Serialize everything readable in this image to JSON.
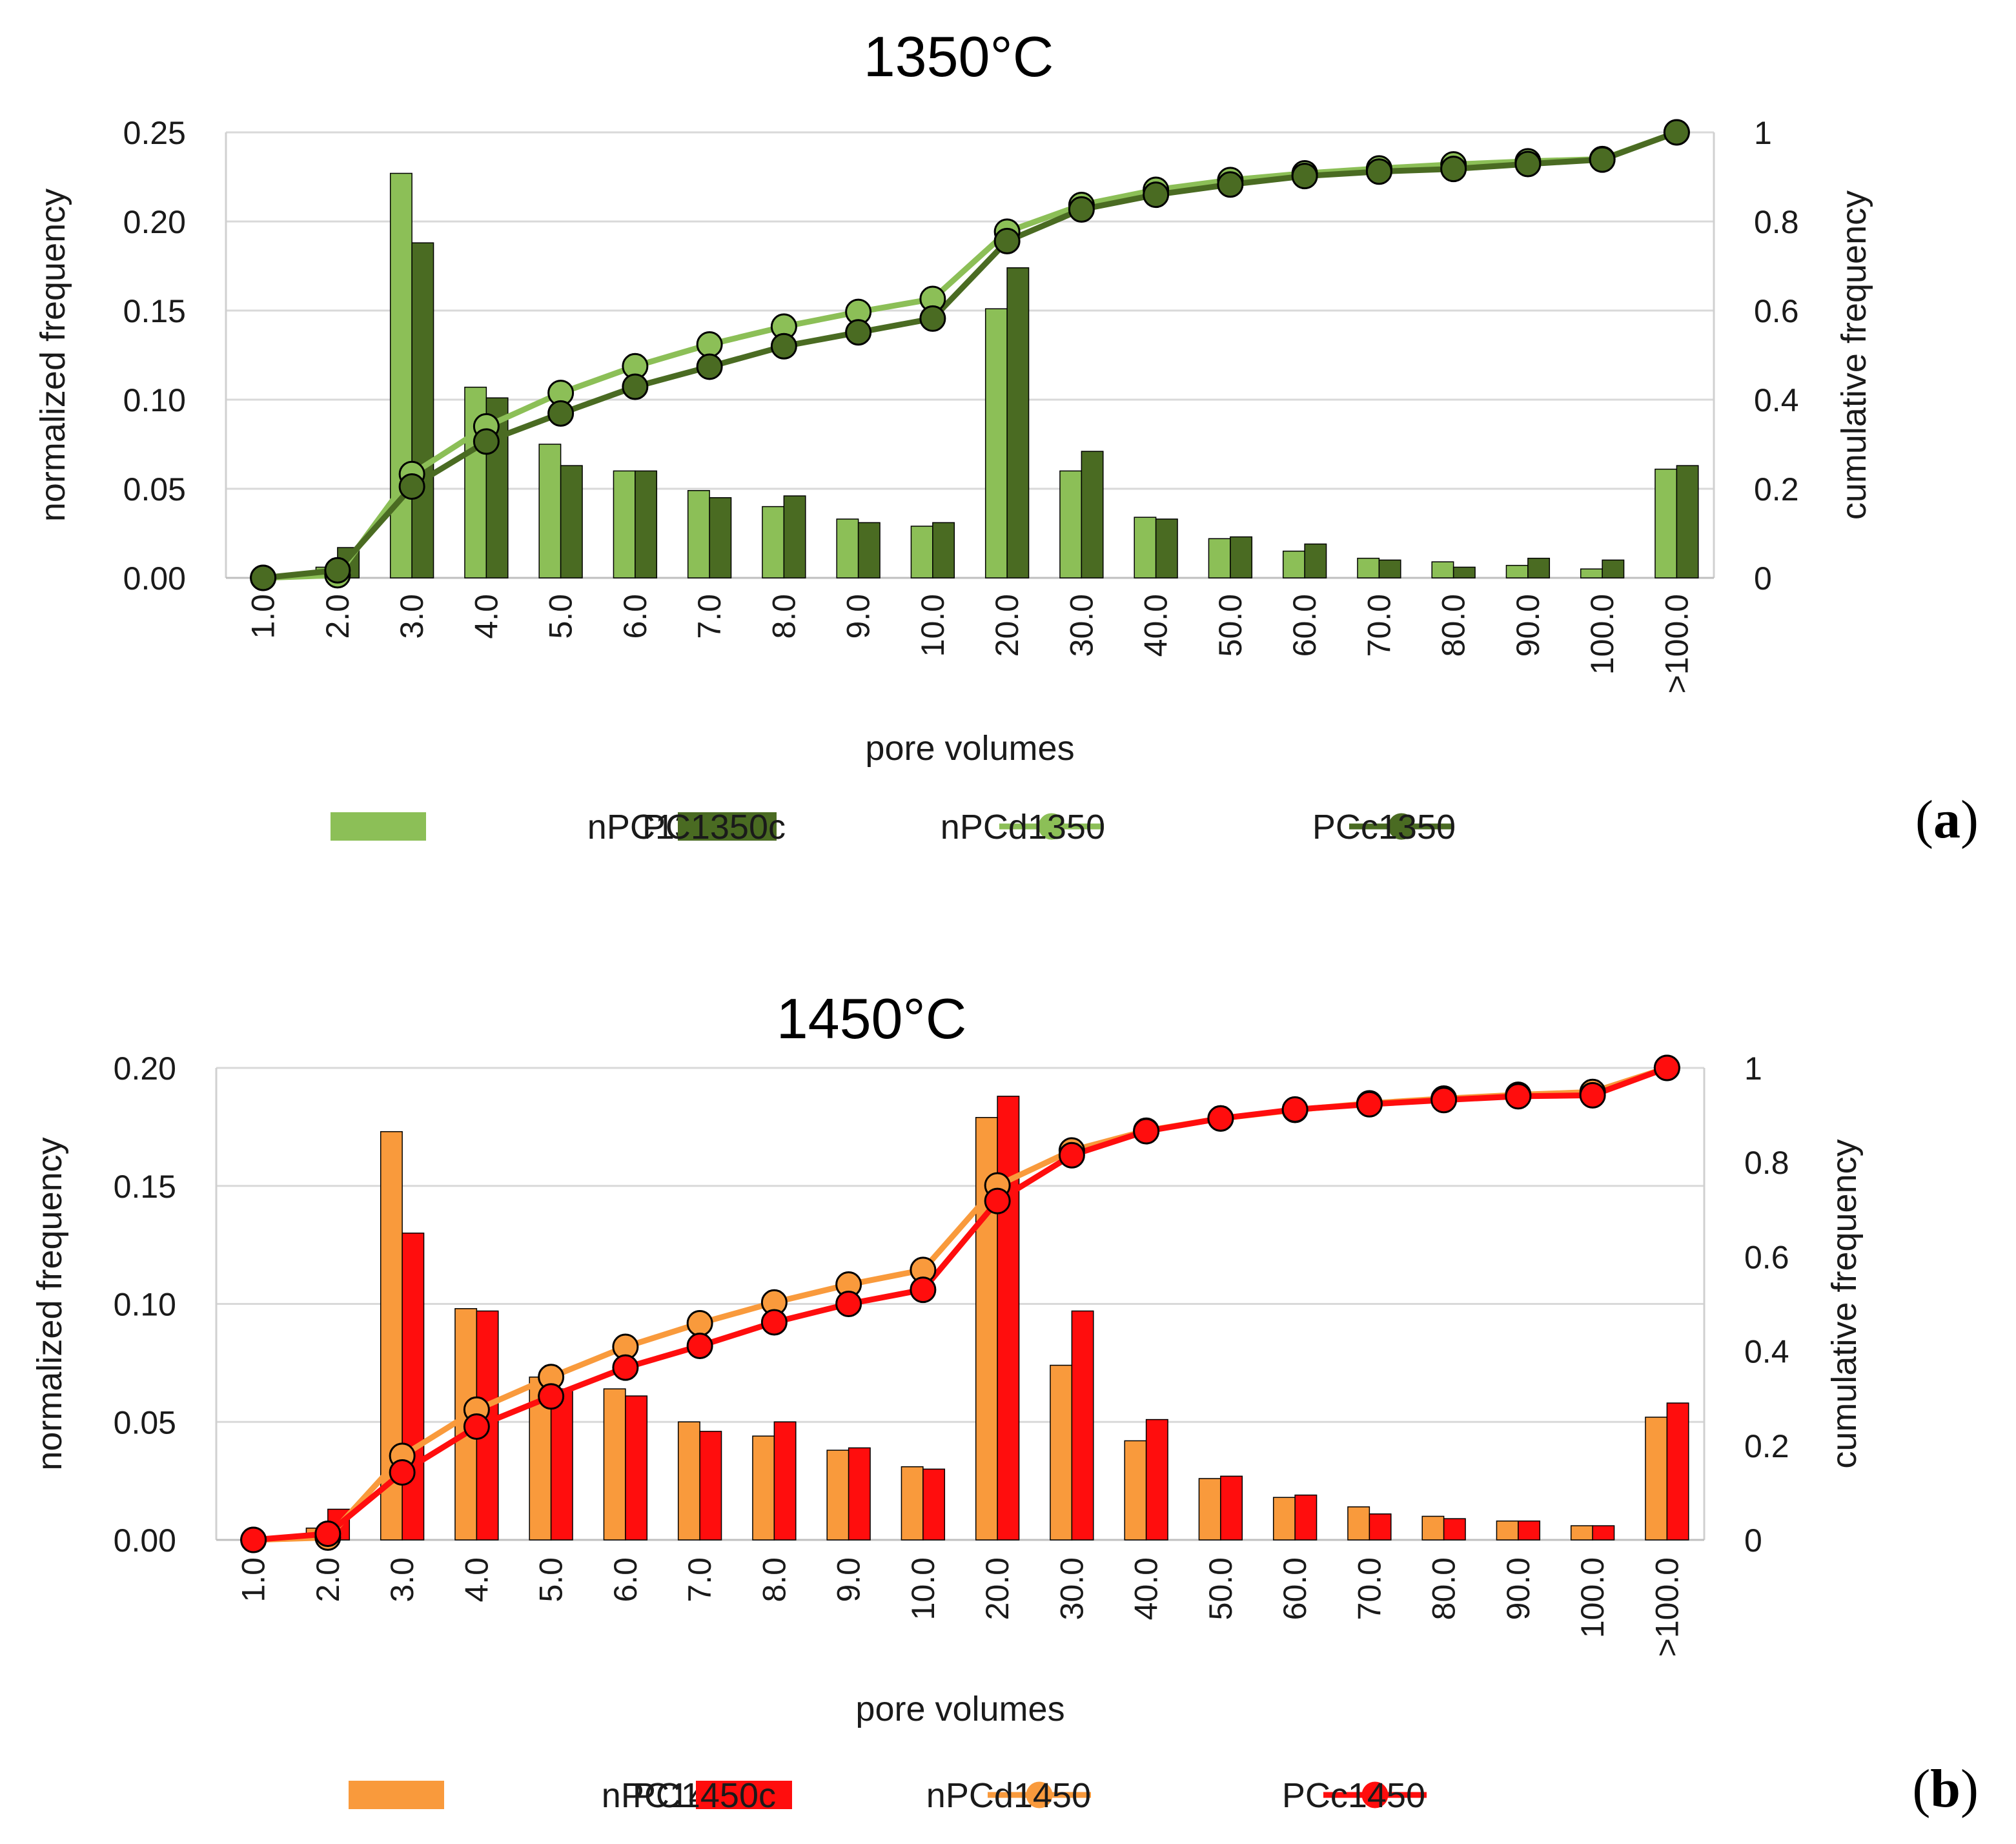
{
  "chart_data": [
    {
      "type": "bar",
      "panel": "a",
      "title": "1350°C",
      "xlabel": "pore volumes",
      "ylabel": "normalized frequency",
      "y2label": "cumulative frequency",
      "categories": [
        "1.0",
        "2.0",
        "3.0",
        "4.0",
        "5.0",
        "6.0",
        "7.0",
        "8.0",
        "9.0",
        "10.0",
        "20.0",
        "30.0",
        "40.0",
        "50.0",
        "60.0",
        "70.0",
        "80.0",
        "90.0",
        "100.0",
        ">100.0"
      ],
      "ylim": [
        0,
        0.25
      ],
      "yticks": [
        "0.00",
        "0.05",
        "0.10",
        "0.15",
        "0.20",
        "0.25"
      ],
      "y2lim": [
        0,
        1
      ],
      "y2ticks": [
        "0",
        "0.2",
        "0.4",
        "0.6",
        "0.8",
        "1"
      ],
      "grid": true,
      "legend_position": "bottom",
      "bar_series": [
        {
          "name": "nPC1350d",
          "color": "#8cbf57",
          "values": [
            0.0,
            0.006,
            0.227,
            0.107,
            0.075,
            0.06,
            0.049,
            0.04,
            0.033,
            0.029,
            0.151,
            0.06,
            0.034,
            0.022,
            0.015,
            0.011,
            0.009,
            0.007,
            0.005,
            0.061
          ]
        },
        {
          "name": "PC1350c",
          "color": "#4a6b22",
          "values": [
            0.0,
            0.017,
            0.188,
            0.101,
            0.063,
            0.06,
            0.045,
            0.046,
            0.031,
            0.031,
            0.174,
            0.071,
            0.033,
            0.023,
            0.019,
            0.01,
            0.006,
            0.011,
            0.01,
            0.063
          ]
        }
      ],
      "line_series": [
        {
          "name": "nPCd1350",
          "color": "#8cbf57",
          "values": [
            0.0,
            0.006,
            0.233,
            0.34,
            0.415,
            0.475,
            0.524,
            0.564,
            0.597,
            0.626,
            0.777,
            0.837,
            0.871,
            0.893,
            0.908,
            0.919,
            0.928,
            0.935,
            0.94,
            1.0
          ]
        },
        {
          "name": "PCc1350",
          "color": "#4a6b22",
          "values": [
            0.0,
            0.017,
            0.205,
            0.306,
            0.369,
            0.429,
            0.474,
            0.52,
            0.551,
            0.582,
            0.756,
            0.827,
            0.86,
            0.883,
            0.902,
            0.912,
            0.918,
            0.929,
            0.939,
            1.0
          ]
        }
      ]
    },
    {
      "type": "bar",
      "panel": "b",
      "title": "1450°C",
      "xlabel": "pore volumes",
      "ylabel": "normalized frequency",
      "y2label": "cumulative frequency",
      "categories": [
        "1.0",
        "2.0",
        "3.0",
        "4.0",
        "5.0",
        "6.0",
        "7.0",
        "8.0",
        "9.0",
        "10.0",
        "20.0",
        "30.0",
        "40.0",
        "50.0",
        "60.0",
        "70.0",
        "80.0",
        "90.0",
        "100.0",
        ">100.0"
      ],
      "ylim": [
        0,
        0.2
      ],
      "yticks": [
        "0.00",
        "0.05",
        "0.10",
        "0.15",
        "0.20"
      ],
      "y2lim": [
        0,
        1
      ],
      "y2ticks": [
        "0",
        "0.2",
        "0.4",
        "0.6",
        "0.8",
        "1"
      ],
      "grid": true,
      "legend_position": "bottom",
      "bar_series": [
        {
          "name": "nPC1450d",
          "color": "#f99a3c",
          "values": [
            0.0,
            0.005,
            0.173,
            0.098,
            0.069,
            0.064,
            0.05,
            0.044,
            0.038,
            0.031,
            0.179,
            0.074,
            0.042,
            0.026,
            0.018,
            0.014,
            0.01,
            0.008,
            0.006,
            0.052
          ]
        },
        {
          "name": "PC1450c",
          "color": "#ff0d0d",
          "values": [
            0.0,
            0.013,
            0.13,
            0.097,
            0.064,
            0.061,
            0.046,
            0.05,
            0.039,
            0.03,
            0.188,
            0.097,
            0.051,
            0.027,
            0.019,
            0.011,
            0.009,
            0.008,
            0.006,
            0.058
          ]
        }
      ],
      "line_series": [
        {
          "name": "nPCd1450",
          "color": "#f99a3c",
          "values": [
            0.0,
            0.005,
            0.178,
            0.276,
            0.345,
            0.409,
            0.459,
            0.503,
            0.541,
            0.572,
            0.751,
            0.825,
            0.867,
            0.893,
            0.911,
            0.925,
            0.935,
            0.943,
            0.949,
            1.0
          ]
        },
        {
          "name": "PCc1450",
          "color": "#ff0d0d",
          "values": [
            0.0,
            0.013,
            0.143,
            0.24,
            0.304,
            0.365,
            0.411,
            0.461,
            0.5,
            0.53,
            0.718,
            0.815,
            0.866,
            0.893,
            0.912,
            0.923,
            0.932,
            0.94,
            0.942,
            1.0
          ]
        }
      ]
    }
  ]
}
